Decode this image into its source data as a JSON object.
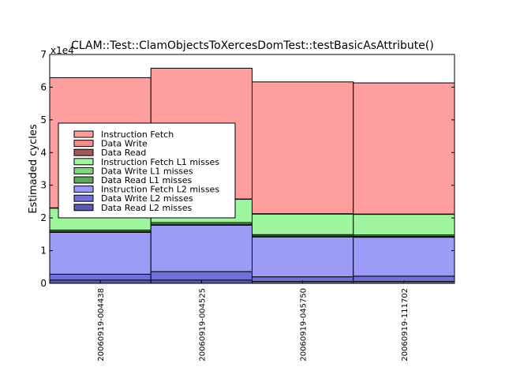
{
  "chart_data": {
    "type": "bar",
    "stacked": true,
    "title": "CLAM::Test::ClamObjectsToXercesDomTest::testBasicAsAttribute()",
    "xlabel": "",
    "ylabel": "Estimaded cycles",
    "offset_label": "x1e4",
    "ylim": [
      0,
      70000
    ],
    "yticks": [
      0,
      10000,
      20000,
      30000,
      40000,
      50000,
      60000,
      70000
    ],
    "ytick_labels": [
      "0",
      "1",
      "2",
      "3",
      "4",
      "5",
      "6",
      "7"
    ],
    "categories": [
      "20060919-004438",
      "20060919-004525",
      "20060919-045750",
      "20060919-111702"
    ],
    "legend_position": "center-left",
    "grid": false,
    "series": [
      {
        "name": "Data Read L2 misses",
        "color": "#5a5ab4",
        "values": [
          1000,
          1000,
          600,
          600
        ]
      },
      {
        "name": "Data Write L2 misses",
        "color": "#7070d8",
        "values": [
          1800,
          2600,
          1400,
          1600
        ]
      },
      {
        "name": "Instruction Fetch L2 misses",
        "color": "#9c9cf6",
        "values": [
          12800,
          14200,
          12200,
          11900
        ]
      },
      {
        "name": "Data Read L1 misses",
        "color": "#5aaa5a",
        "values": [
          300,
          300,
          300,
          300
        ]
      },
      {
        "name": "Data Write L1 misses",
        "color": "#7dd87d",
        "values": [
          400,
          500,
          400,
          400
        ]
      },
      {
        "name": "Instruction Fetch L1 misses",
        "color": "#9ef59e",
        "values": [
          6700,
          7100,
          6300,
          6300
        ]
      },
      {
        "name": "Data Read",
        "color": "#a05a5a",
        "values": [
          0,
          0,
          0,
          0
        ]
      },
      {
        "name": "Data Write",
        "color": "#f28e8e",
        "values": [
          100,
          100,
          100,
          100
        ]
      },
      {
        "name": "Instruction Fetch",
        "color": "#ff9e9e",
        "values": [
          39800,
          40000,
          40300,
          40100
        ]
      }
    ],
    "legend_order": [
      "Instruction Fetch",
      "Data Write",
      "Data Read",
      "Instruction Fetch L1 misses",
      "Data Write L1 misses",
      "Data Read L1 misses",
      "Instruction Fetch L2 misses",
      "Data Write L2 misses",
      "Data Read L2 misses"
    ]
  }
}
